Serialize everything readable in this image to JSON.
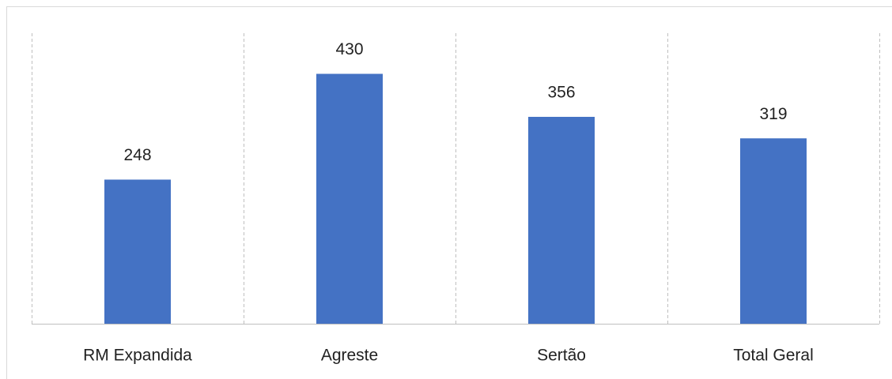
{
  "chart_data": {
    "type": "bar",
    "categories": [
      "RM Expandida",
      "Agreste",
      "Sertão",
      "Total Geral"
    ],
    "values": [
      248,
      430,
      356,
      319
    ],
    "color": "#4472c4",
    "ylim": [
      0,
      500
    ],
    "grid": false
  }
}
